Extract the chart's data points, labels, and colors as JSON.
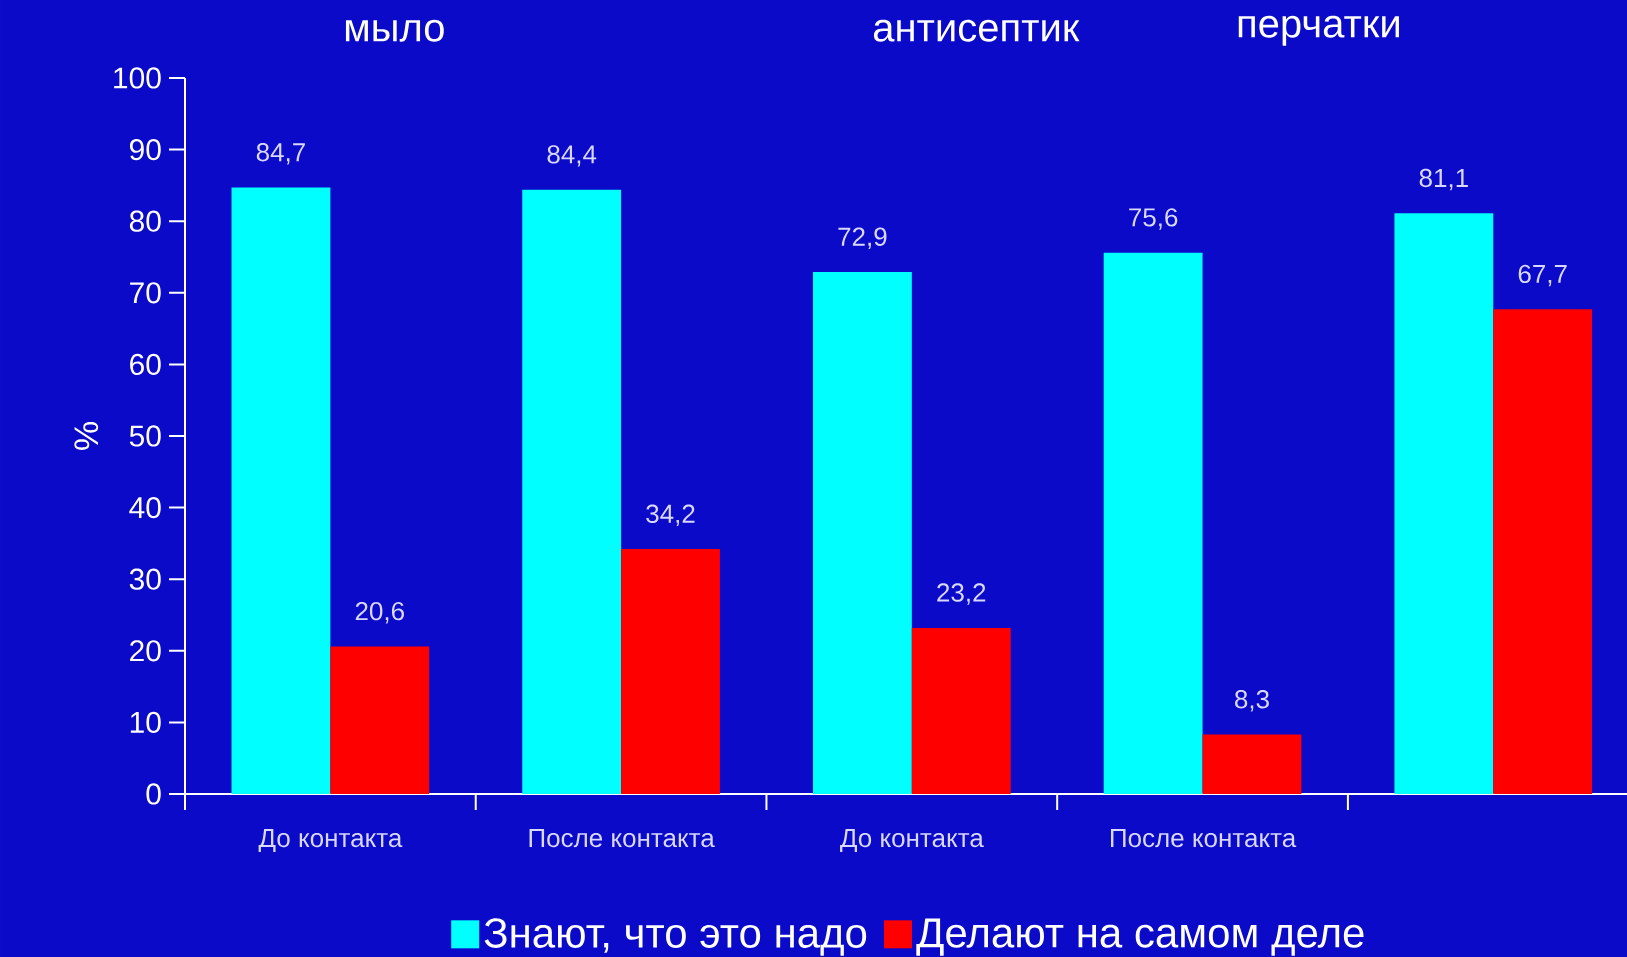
{
  "chart_data": {
    "type": "bar",
    "ylabel": "%",
    "annotations": [
      "мыло",
      "антисептик",
      "перчатки"
    ],
    "categories": [
      "До контакта",
      "После контакта",
      "До контакта",
      "После контакта",
      null
    ],
    "series": [
      {
        "name": "Знают, что это надо",
        "color": "#00ffff",
        "values": [
          84.7,
          84.4,
          72.9,
          75.6,
          81.1
        ],
        "value_labels": [
          "84,7",
          "84,4",
          "72,9",
          "75,6",
          "81,1"
        ]
      },
      {
        "name": "Делают на самом деле",
        "color": "#ff0000",
        "values": [
          20.6,
          34.2,
          23.2,
          8.3,
          67.7
        ],
        "value_labels": [
          "20,6",
          "34,2",
          "23,2",
          "8,3",
          "67,7"
        ]
      }
    ],
    "ylim": [
      0,
      100
    ],
    "yticks": [
      0,
      10,
      20,
      30,
      40,
      50,
      60,
      70,
      80,
      90,
      100
    ],
    "legend": "bottom",
    "grid": false
  }
}
